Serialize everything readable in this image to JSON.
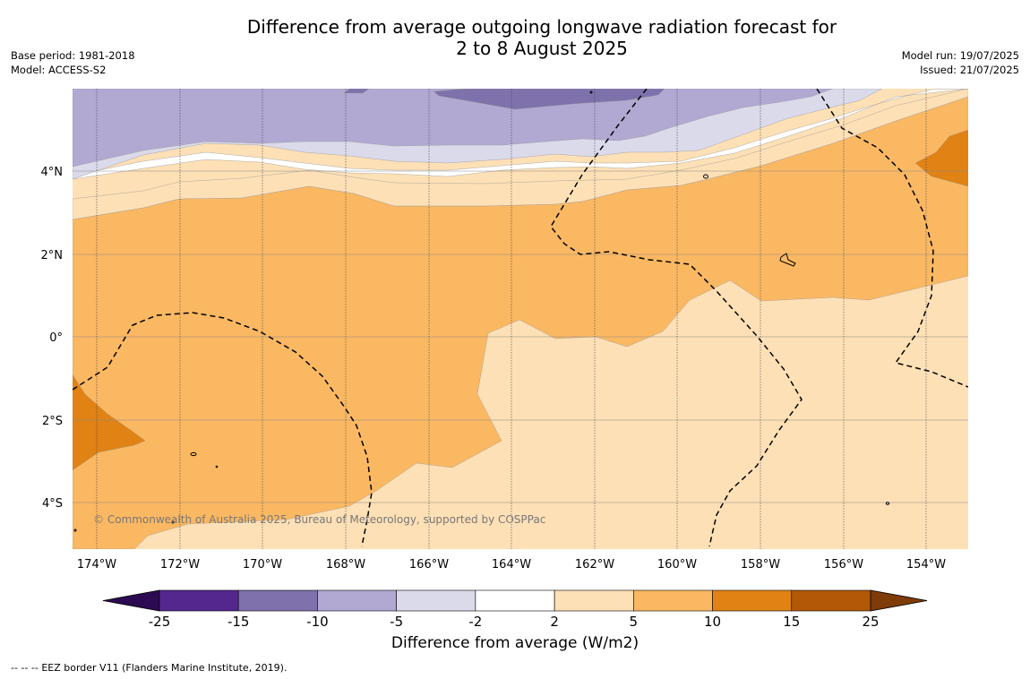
{
  "title": {
    "line1": "Difference from average outgoing longwave radiation forecast for",
    "line2": "2 to 8 August 2025"
  },
  "meta_left": {
    "base_period": "Base period: 1981-2018",
    "model": "Model: ACCESS-S2"
  },
  "meta_right": {
    "model_run": "Model run: 19/07/2025",
    "issued": "Issued: 21/07/2025"
  },
  "map": {
    "lat_labels": [
      "4°N",
      "2°N",
      "0°",
      "2°S",
      "4°S"
    ],
    "lon_labels": [
      "174°W",
      "172°W",
      "170°W",
      "168°W",
      "166°W",
      "164°W",
      "162°W",
      "160°W",
      "158°W",
      "156°W",
      "154°W"
    ],
    "credit": "© Commonwealth of Australia 2025, Bureau of Meteorology, supported by COSPPac"
  },
  "colorbar": {
    "ticks": [
      "-25",
      "-15",
      "-10",
      "-5",
      "-2",
      "2",
      "5",
      "10",
      "15",
      "25"
    ],
    "label": "Difference from average (W/m2)",
    "colors": [
      "#2d0b52",
      "#54278f",
      "#7f72ac",
      "#b1a9d2",
      "#dadaeb",
      "#ffffff",
      "#fee0b6",
      "#fbb862",
      "#e08214",
      "#b35806",
      "#7f3b08"
    ]
  },
  "footer": {
    "legend_symbol": "--  --  --",
    "text": "EEZ border V11 (Flanders Marine Institute, 2019)."
  }
}
